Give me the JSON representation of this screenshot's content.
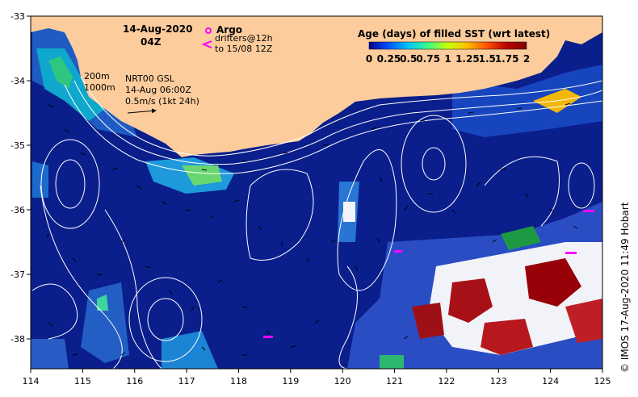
{
  "map": {
    "date_label": "14-Aug-2020",
    "time_label": "04Z",
    "legend_argo_label": "Argo",
    "legend_drifters_line1": "drifters@12h",
    "legend_drifters_line2": "to 15/08 12Z",
    "contour_200": "200m",
    "contour_1000": "1000m",
    "current_product": "NRT00 GSL",
    "current_time": "14-Aug 06:00Z",
    "scale_label": "0.5m/s (1kt 24h)",
    "colorbar_title": "Age (days) of filled SST (wrt latest)",
    "colorbar_ticks": [
      "0",
      "0.25",
      "0.5",
      "0.75",
      "1",
      "1.25",
      "1.5",
      "1.75",
      "2"
    ],
    "credit": "© IMOS 17-Aug-2020 11:49 Hobart",
    "x_ticks": [
      "114",
      "115",
      "116",
      "117",
      "118",
      "119",
      "120",
      "121",
      "122",
      "123",
      "124",
      "125"
    ],
    "y_ticks": [
      "-33",
      "-34",
      "-35",
      "-36",
      "-37",
      "-38"
    ],
    "colors": {
      "ocean": "#0a1e8c",
      "land": "#fccc9c",
      "contour": "#ffffff",
      "argo": "#ff00ff",
      "colorbar": [
        "#00008f",
        "#0050ff",
        "#00c8ff",
        "#40ff80",
        "#c8ff00",
        "#ffc000",
        "#ff5000",
        "#b40000",
        "#800000"
      ]
    }
  }
}
